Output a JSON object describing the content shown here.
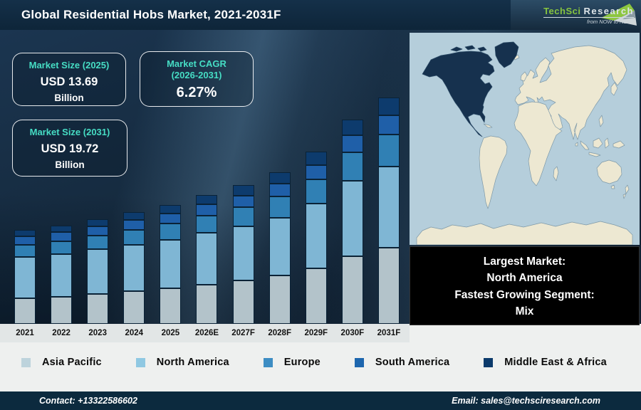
{
  "header": {
    "title": "Global Residential Hobs Market, 2021-2031F"
  },
  "logo": {
    "brand_primary": "TechSci",
    "brand_secondary": "Research",
    "tagline": "from NOW to NEXT"
  },
  "stat_boxes": {
    "size_2025": {
      "label": "Market Size (2025)",
      "value": "USD 13.69",
      "unit": "Billion"
    },
    "cagr": {
      "label_line1": "Market CAGR",
      "label_line2": "(2026-2031)",
      "value": "6.27%"
    },
    "size_2031": {
      "label": "Market Size (2031)",
      "value": "USD 19.72",
      "unit": "Billion"
    }
  },
  "info_box": {
    "lines": [
      "Largest Market:",
      "North America",
      "Fastest Growing Segment:",
      "Mix"
    ]
  },
  "map": {
    "highlighted_region": "North America"
  },
  "legend": [
    {
      "label": "Asia Pacific",
      "color": "#bdd3dc"
    },
    {
      "label": "North America",
      "color": "#8fc8e2"
    },
    {
      "label": "Europe",
      "color": "#3d8dc3"
    },
    {
      "label": "South America",
      "color": "#1d66ae"
    },
    {
      "label": "Middle East & Africa",
      "color": "#0b3a6b"
    }
  ],
  "footer": {
    "contact": "Contact: +13322586602",
    "email": "Email: sales@techsciresearch.com"
  },
  "colors": {
    "accent_teal": "#46ddc4",
    "bar_outline": "#0a2236",
    "axis_strip_bg": "#e2e6e6",
    "band_bg": "#eef0ef",
    "footer_bg": "#0c2a3e",
    "logo_green": "#86c440",
    "map_ocean": "#b5cedb",
    "map_land": "#ede8d2",
    "map_highlight": "#16314e",
    "info_box_bg": "#000000"
  },
  "chart_data": {
    "type": "bar",
    "stacked": true,
    "title": "Global Residential Hobs Market, 2021-2031F",
    "categories": [
      "2021",
      "2022",
      "2023",
      "2024",
      "2025",
      "2026E",
      "2027F",
      "2028F",
      "2029F",
      "2030F",
      "2031F"
    ],
    "value_units": "relative bar height (px); chart has no y-axis or gridlines",
    "series": [
      {
        "name": "Asia Pacific",
        "color": "#b3c3ca",
        "values": [
          35.6,
          38.2,
          41.7,
          45.6,
          49.6,
          55.0,
          60.6,
          67.7,
          78.5,
          95.1,
          107.5
        ]
      },
      {
        "name": "North America",
        "color": "#7fb6d4",
        "values": [
          58.7,
          60.2,
          62.9,
          65.8,
          68.5,
          72.7,
          76.6,
          81.8,
          90.8,
          105.6,
          113.8
        ]
      },
      {
        "name": "Europe",
        "color": "#3080b4",
        "values": [
          17.2,
          18.1,
          19.5,
          21.0,
          22.5,
          24.6,
          26.7,
          29.5,
          33.7,
          40.6,
          45.2
        ]
      },
      {
        "name": "South America",
        "color": "#1f5fa8",
        "values": [
          11.6,
          12.1,
          12.8,
          13.6,
          14.5,
          15.6,
          16.6,
          18.1,
          20.5,
          24.1,
          26.7
        ]
      },
      {
        "name": "Middle East & Africa",
        "color": "#0d3b6d",
        "values": [
          8.8,
          9.4,
          10.2,
          11.1,
          11.9,
          13.1,
          14.4,
          15.9,
          18.6,
          21.8,
          24.7
        ]
      }
    ],
    "legend_position": "bottom",
    "grid": false,
    "labeled_metrics": {
      "market_size_2025": "USD 13.69 Billion",
      "market_size_2031": "USD 19.72 Billion",
      "cagr_2026_2031": "6.27%"
    }
  }
}
